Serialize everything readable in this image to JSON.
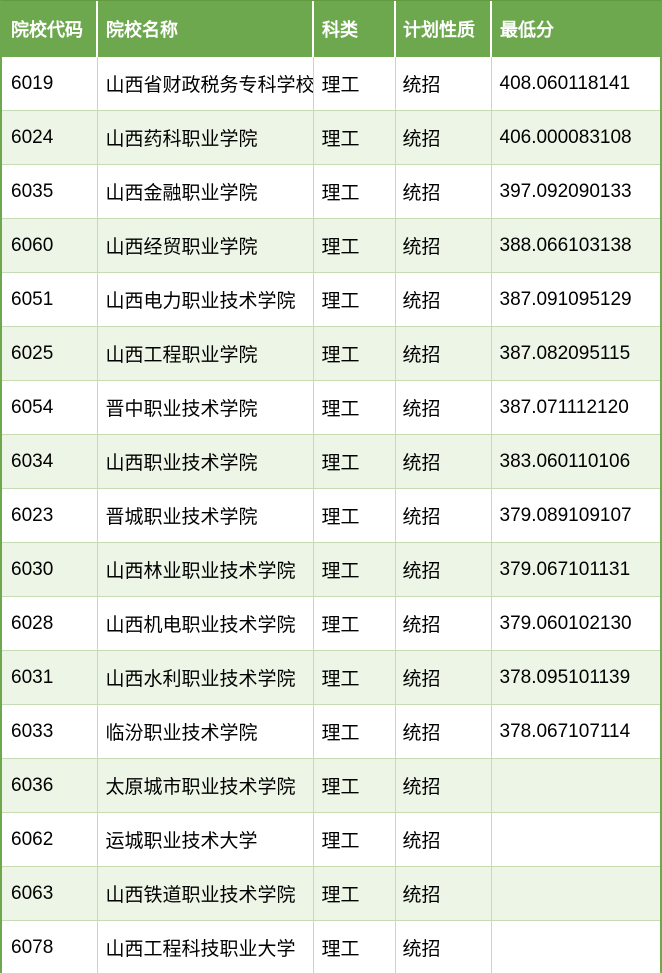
{
  "chart_data": {
    "type": "table",
    "title": "",
    "columns": [
      "院校代码",
      "院校名称",
      "科类",
      "计划性质",
      "最低分"
    ],
    "rows": [
      {
        "code": "6019",
        "name": "山西省财政税务专科学校",
        "category": "理工",
        "plan": "统招",
        "score": "408.060118141"
      },
      {
        "code": "6024",
        "name": "山西药科职业学院",
        "category": "理工",
        "plan": "统招",
        "score": "406.000083108"
      },
      {
        "code": "6035",
        "name": "山西金融职业学院",
        "category": "理工",
        "plan": "统招",
        "score": "397.092090133"
      },
      {
        "code": "6060",
        "name": "山西经贸职业学院",
        "category": "理工",
        "plan": "统招",
        "score": "388.066103138"
      },
      {
        "code": "6051",
        "name": "山西电力职业技术学院",
        "category": "理工",
        "plan": "统招",
        "score": "387.091095129"
      },
      {
        "code": "6025",
        "name": "山西工程职业学院",
        "category": "理工",
        "plan": "统招",
        "score": "387.082095115"
      },
      {
        "code": "6054",
        "name": "晋中职业技术学院",
        "category": "理工",
        "plan": "统招",
        "score": "387.071112120"
      },
      {
        "code": "6034",
        "name": "山西职业技术学院",
        "category": "理工",
        "plan": "统招",
        "score": "383.060110106"
      },
      {
        "code": "6023",
        "name": "晋城职业技术学院",
        "category": "理工",
        "plan": "统招",
        "score": "379.089109107"
      },
      {
        "code": "6030",
        "name": "山西林业职业技术学院",
        "category": "理工",
        "plan": "统招",
        "score": "379.067101131"
      },
      {
        "code": "6028",
        "name": "山西机电职业技术学院",
        "category": "理工",
        "plan": "统招",
        "score": "379.060102130"
      },
      {
        "code": "6031",
        "name": "山西水利职业技术学院",
        "category": "理工",
        "plan": "统招",
        "score": "378.095101139"
      },
      {
        "code": "6033",
        "name": "临汾职业技术学院",
        "category": "理工",
        "plan": "统招",
        "score": "378.067107114"
      },
      {
        "code": "6036",
        "name": "太原城市职业技术学院",
        "category": "理工",
        "plan": "统招",
        "score": ""
      },
      {
        "code": "6062",
        "name": "运城职业技术大学",
        "category": "理工",
        "plan": "统招",
        "score": ""
      },
      {
        "code": "6063",
        "name": "山西铁道职业技术学院",
        "category": "理工",
        "plan": "统招",
        "score": ""
      },
      {
        "code": "6078",
        "name": "山西工程科技职业大学",
        "category": "理工",
        "plan": "统招",
        "score": ""
      }
    ]
  },
  "colors": {
    "header_bg": "#6da84e",
    "header_text": "#ffffff",
    "row_bg": "#ffffff",
    "row_alt_bg": "#edf5e6",
    "grid_line": "#c5dcb3",
    "side_border": "#6da84e",
    "body_text": "#000000"
  }
}
